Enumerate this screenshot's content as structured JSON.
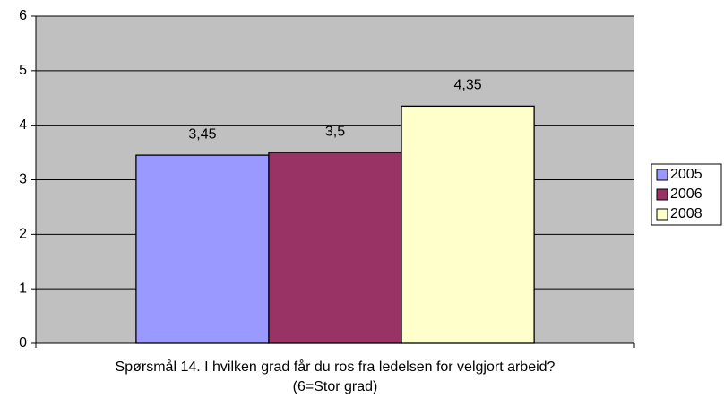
{
  "chart_data": {
    "type": "bar",
    "x_label": [
      "Spørsmål 14. I hvilken grad får du ros fra ledelsen for velgjort arbeid?",
      "(6=Stor grad)"
    ],
    "categories": [
      null
    ],
    "series": [
      {
        "name": "2005",
        "color": "#9999ff",
        "values": [
          3.45
        ],
        "value_labels": [
          "3,45"
        ]
      },
      {
        "name": "2006",
        "color": "#993366",
        "values": [
          3.5
        ],
        "value_labels": [
          "3,5"
        ]
      },
      {
        "name": "2008",
        "color": "#ffffcc",
        "values": [
          4.35
        ],
        "value_labels": [
          "4,35"
        ]
      }
    ],
    "ylim": [
      0,
      6
    ],
    "yticks": [
      0,
      1,
      2,
      3,
      4,
      5,
      6
    ],
    "grid": true,
    "plot_background": "#c0c0c0",
    "legend": "right"
  }
}
